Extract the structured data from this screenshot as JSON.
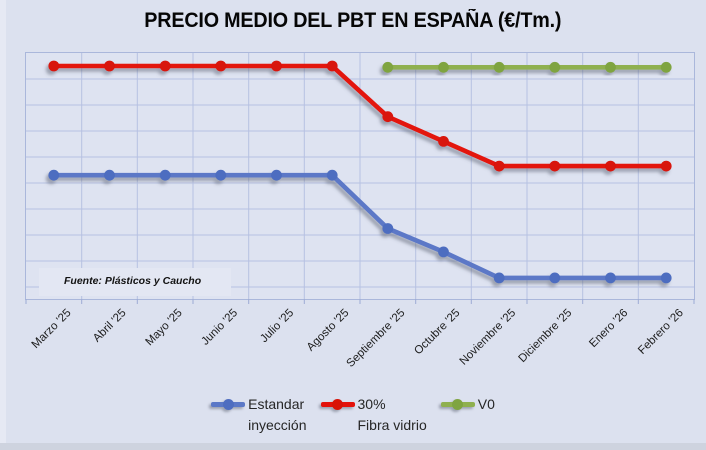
{
  "title": "PRECIO MEDIO DEL PBT EN ESPAÑA (€/Tm.)",
  "colors": {
    "background": "#dce1ef",
    "plot_background": "#dee3f1",
    "gridline": "#b6c1e2",
    "series_blue": "#5b78c7",
    "series_red": "#e3120b",
    "series_green": "#8fb04f"
  },
  "legend": {
    "items": [
      {
        "line1": "Estandar",
        "line2": "inyección",
        "color": "#5b78c7",
        "dot_color": "#4e6dc0"
      },
      {
        "line1": "30%",
        "line2": "Fibra vidrio",
        "color": "#e3120b",
        "dot_color": "#d81207"
      },
      {
        "line1": "V0",
        "line2": "",
        "color": "#8fb04f",
        "dot_color": "#7fa441"
      }
    ]
  },
  "chart_data": {
    "type": "line",
    "title": "PRECIO MEDIO DEL PBT EN ESPAÑA (€/Tm.)",
    "categories": [
      "Marzo '25",
      "Abril '25",
      "Mayo '25",
      "Junio '25",
      "Julio '25",
      "Agosto '25",
      "Septiembre '25",
      "Octubre '25",
      "Noviembre '25",
      "Diciembre '25",
      "Enero '26",
      "Febrero '26"
    ],
    "series": [
      {
        "name": "Estandar inyección",
        "color": "#5b78c7",
        "dot_color": "#4e6dc0",
        "values": [
          4.8,
          4.8,
          4.8,
          4.8,
          4.8,
          4.8,
          2.75,
          1.85,
          0.85,
          0.85,
          0.85,
          0.85
        ]
      },
      {
        "name": "30% Fibra vidrio",
        "color": "#e3120b",
        "dot_color": "#d81207",
        "values": [
          9.0,
          9.0,
          9.0,
          9.0,
          9.0,
          9.0,
          7.05,
          6.1,
          5.15,
          5.15,
          5.15,
          5.15
        ]
      },
      {
        "name": "V0",
        "color": "#8fb04f",
        "dot_color": "#7fa441",
        "values": [
          null,
          null,
          null,
          null,
          null,
          null,
          8.95,
          8.95,
          8.95,
          8.95,
          8.95,
          8.95
        ]
      }
    ],
    "xlabel": "",
    "ylabel": "",
    "y_axis_labels_visible": false,
    "value_scale_note": "No y-axis tick labels are shown in the source chart; series values are expressed in horizontal-gridline units above the x-axis (1 unit = 1 gridline spacing).",
    "gridlines": true,
    "legend_position": "bottom",
    "source_note": "Fuente: Plásticos y Caucho"
  }
}
